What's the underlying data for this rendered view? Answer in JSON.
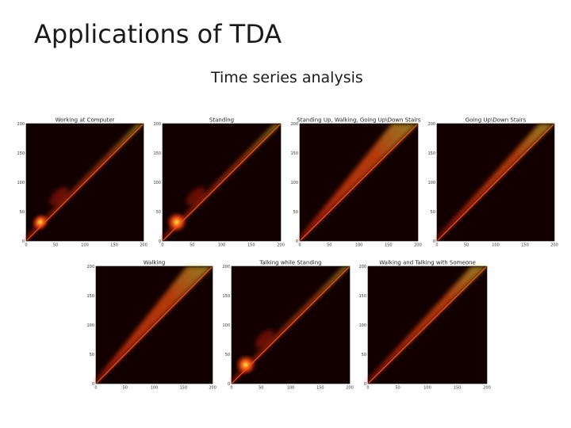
{
  "slide": {
    "title": "Applications of TDA",
    "subtitle": "Time series analysis"
  },
  "colors": {
    "background": "#120000",
    "diagonal": "#ff5a14",
    "hot": "#ffe040",
    "warm": "#d0200a"
  },
  "panels": [
    {
      "title": "Working at Computer",
      "blob": "low",
      "wedge": "thin"
    },
    {
      "title": "Standing",
      "blob": "low-strong",
      "wedge": "thin"
    },
    {
      "title": "Standing Up, Walking, Going Up\\Down Stairs",
      "blob": "none",
      "wedge": "wide"
    },
    {
      "title": "Going Up\\Down Stairs",
      "blob": "none",
      "wedge": "medium"
    },
    {
      "title": "Walking",
      "blob": "none",
      "wedge": "wide"
    },
    {
      "title": "Talking while Standing",
      "blob": "low-strong",
      "wedge": "thin"
    },
    {
      "title": "Walking and Talking with Someone",
      "blob": "none",
      "wedge": "medium"
    }
  ],
  "axes": {
    "x_ticks": [
      "0",
      "50",
      "100",
      "150",
      "200"
    ],
    "y_ticks": [
      "0",
      "50",
      "100",
      "150",
      "200"
    ]
  }
}
